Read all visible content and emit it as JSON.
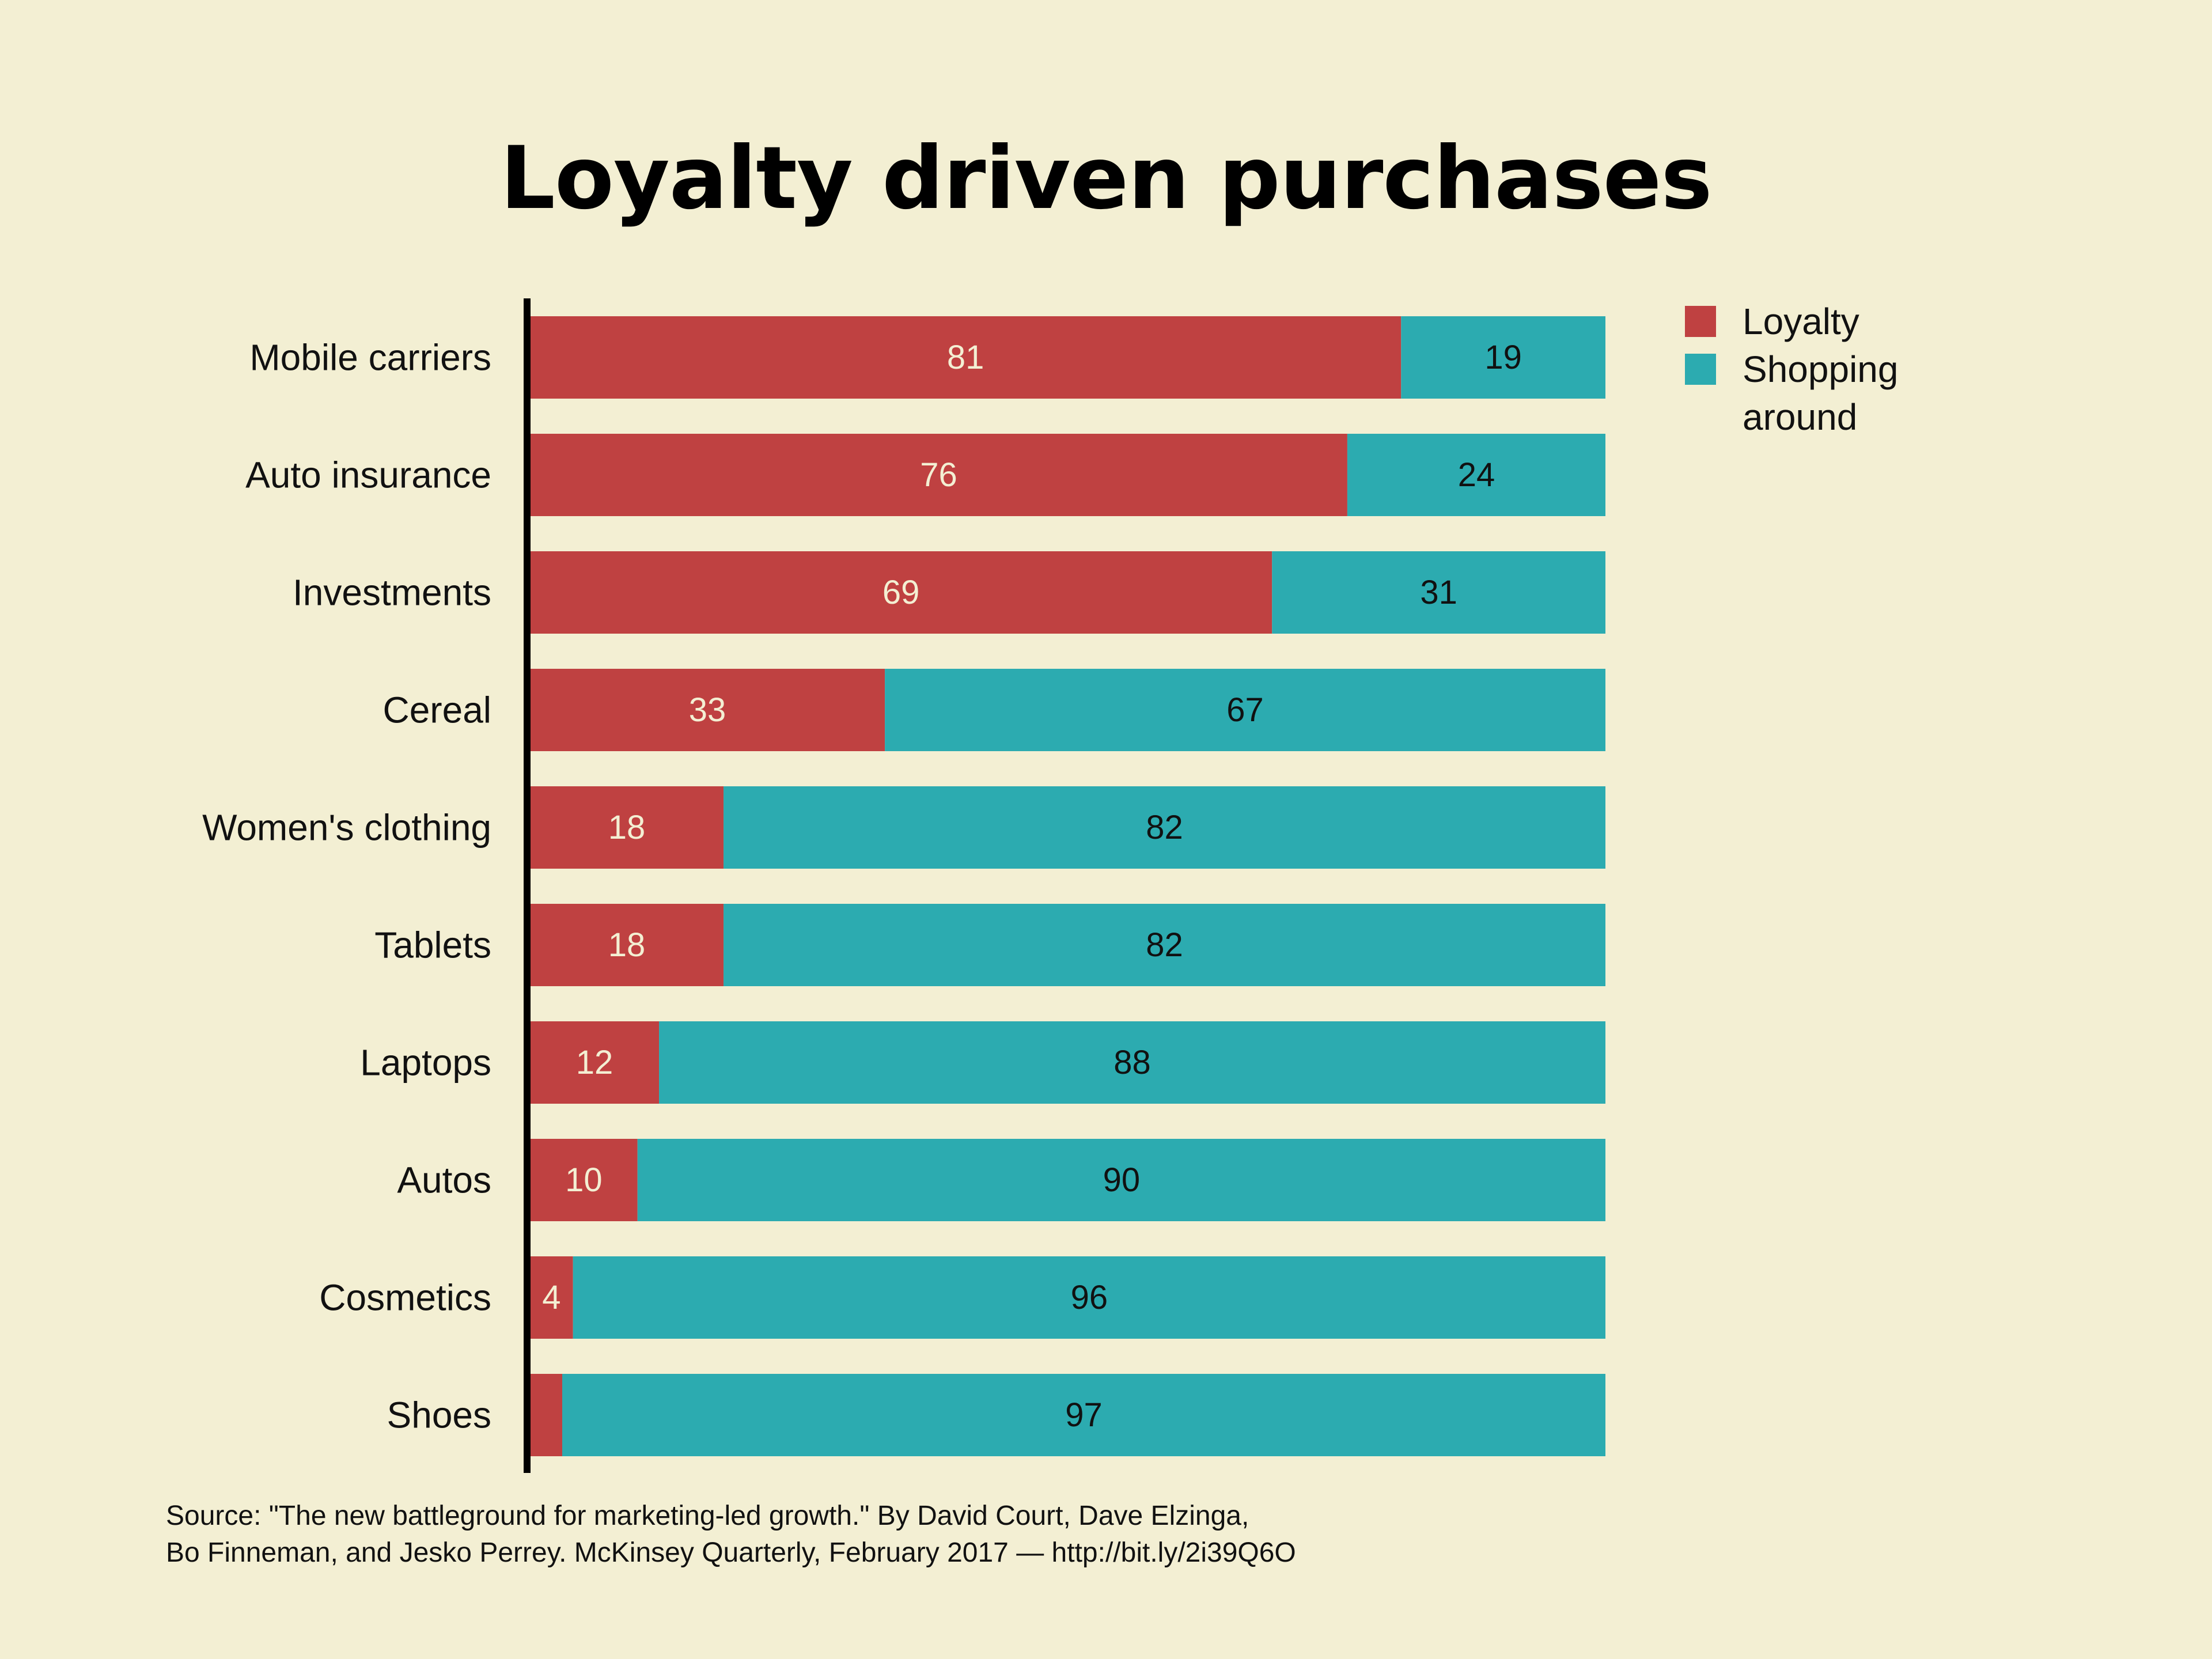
{
  "chart_data": {
    "type": "bar",
    "orientation": "horizontal",
    "stacked": true,
    "title": "Loyalty driven purchases",
    "categories": [
      "Mobile carriers",
      "Auto insurance",
      "Investments",
      "Cereal",
      "Women's clothing",
      "Tablets",
      "Laptops",
      "Autos",
      "Cosmetics",
      "Shoes"
    ],
    "series": [
      {
        "name": "Loyalty",
        "color": "#bf4141",
        "label_color": "#f3efd3",
        "values": [
          81,
          76,
          69,
          33,
          18,
          18,
          12,
          10,
          4,
          3
        ],
        "labels": [
          "81",
          "76",
          "69",
          "33",
          "18",
          "18",
          "12",
          "10",
          "4",
          ""
        ]
      },
      {
        "name": "Shopping around",
        "color": "#2cabb0",
        "label_color": "#111111",
        "values": [
          19,
          24,
          31,
          67,
          82,
          82,
          88,
          90,
          96,
          97
        ],
        "labels": [
          "19",
          "24",
          "31",
          "67",
          "82",
          "82",
          "88",
          "90",
          "96",
          "97"
        ]
      }
    ],
    "xlim": [
      0,
      100
    ],
    "grid": false,
    "legend": "top-right"
  },
  "source": {
    "line1": "Source: \"The new battleground for marketing-led growth.\" By David Court, Dave Elzinga,",
    "line2": "Bo Finneman, and Jesko Perrey. McKinsey Quarterly, February 2017 — http://bit.ly/2i39Q6O"
  }
}
